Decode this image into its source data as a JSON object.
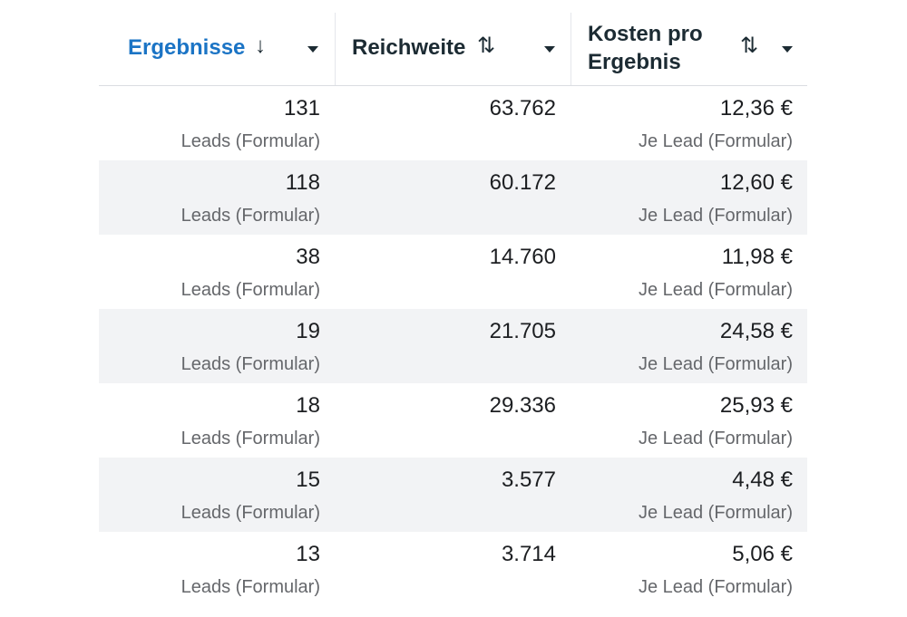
{
  "columns": [
    {
      "label": "Ergebnisse",
      "sort_icon": "↓",
      "icon_name": "sort-descending-icon"
    },
    {
      "label": "Reichweite",
      "sort_icon": "⇅",
      "icon_name": "sort-icon"
    },
    {
      "label_line1": "Kosten pro",
      "label_line2": "Ergebnis",
      "sort_icon": "⇅",
      "icon_name": "sort-icon"
    }
  ],
  "rows": [
    {
      "results": "131",
      "results_sub": "Leads (Formular)",
      "reach": "63.762",
      "cost": "12,36 €",
      "cost_sub": "Je Lead (Formular)"
    },
    {
      "results": "118",
      "results_sub": "Leads (Formular)",
      "reach": "60.172",
      "cost": "12,60 €",
      "cost_sub": "Je Lead (Formular)"
    },
    {
      "results": "38",
      "results_sub": "Leads (Formular)",
      "reach": "14.760",
      "cost": "11,98 €",
      "cost_sub": "Je Lead (Formular)"
    },
    {
      "results": "19",
      "results_sub": "Leads (Formular)",
      "reach": "21.705",
      "cost": "24,58 €",
      "cost_sub": "Je Lead (Formular)"
    },
    {
      "results": "18",
      "results_sub": "Leads (Formular)",
      "reach": "29.336",
      "cost": "25,93 €",
      "cost_sub": "Je Lead (Formular)"
    },
    {
      "results": "15",
      "results_sub": "Leads (Formular)",
      "reach": "3.577",
      "cost": "4,48 €",
      "cost_sub": "Je Lead (Formular)"
    },
    {
      "results": "13",
      "results_sub": "Leads (Formular)",
      "reach": "3.714",
      "cost": "5,06 €",
      "cost_sub": "Je Lead (Formular)"
    }
  ],
  "colors": {
    "active_header": "#1b74c5",
    "header_text": "#1c2b33",
    "secondary_text": "#65676b",
    "alt_row_bg": "#f2f3f5"
  }
}
